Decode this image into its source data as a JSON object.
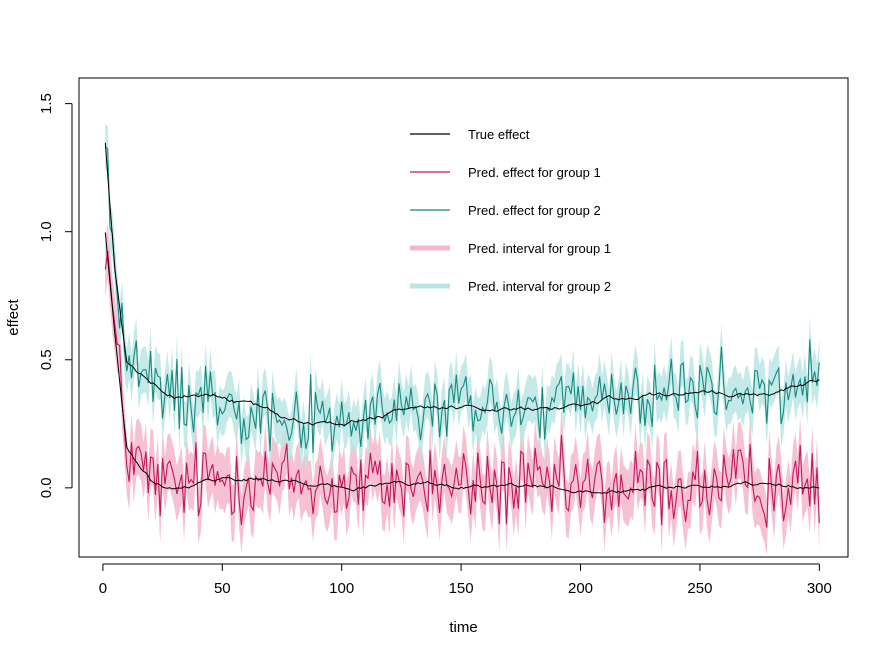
{
  "chart_data": {
    "type": "line",
    "title": "",
    "xlabel": "time",
    "ylabel": "effect",
    "xlim": [
      -10,
      312
    ],
    "ylim": [
      -0.27,
      1.6
    ],
    "x_ticks": [
      0,
      50,
      100,
      150,
      200,
      250,
      300
    ],
    "y_ticks": [
      0.0,
      0.5,
      1.0,
      1.5
    ],
    "x_tick_labels": [
      "0",
      "50",
      "100",
      "150",
      "200",
      "250",
      "300"
    ],
    "y_tick_labels": [
      "0.0",
      "0.5",
      "1.0",
      "1.5"
    ],
    "n_points": 300,
    "band_half_width": {
      "group1": 0.11,
      "group2": 0.09
    },
    "series": [
      {
        "name": "True effect",
        "role": "true_effect",
        "color": "#000000",
        "x": [
          1,
          5,
          10,
          20,
          30,
          50,
          75,
          100,
          125,
          150,
          175,
          200,
          225,
          250,
          275,
          300
        ],
        "y": [
          1.0,
          0.6,
          0.15,
          0.03,
          0.0,
          0.04,
          0.03,
          0.0,
          0.02,
          0.01,
          0.0,
          0.0,
          0.0,
          0.0,
          0.02,
          0.0
        ]
      },
      {
        "name": "True effect",
        "role": "true_effect",
        "color": "#000000",
        "x": [
          1,
          5,
          10,
          20,
          30,
          50,
          75,
          100,
          125,
          150,
          175,
          200,
          225,
          250,
          275,
          300
        ],
        "y": [
          1.35,
          0.85,
          0.5,
          0.4,
          0.36,
          0.36,
          0.28,
          0.25,
          0.3,
          0.32,
          0.31,
          0.33,
          0.36,
          0.38,
          0.36,
          0.42
        ]
      },
      {
        "name": "Pred. effect for group 1",
        "role": "pred_line",
        "color": "#C2185B",
        "x": [
          1,
          5,
          10,
          20,
          30,
          50,
          75,
          100,
          125,
          150,
          175,
          200,
          225,
          250,
          275,
          300
        ],
        "y": [
          1.0,
          0.6,
          0.15,
          0.03,
          0.0,
          0.04,
          0.03,
          0.0,
          0.02,
          0.01,
          0.0,
          0.0,
          0.0,
          0.0,
          0.02,
          0.0
        ],
        "noise_amplitude": 0.08
      },
      {
        "name": "Pred. effect for group 2",
        "role": "pred_line",
        "color": "#168A80",
        "x": [
          1,
          5,
          10,
          20,
          30,
          50,
          75,
          100,
          125,
          150,
          175,
          200,
          225,
          250,
          275,
          300
        ],
        "y": [
          1.35,
          0.85,
          0.5,
          0.4,
          0.36,
          0.36,
          0.28,
          0.25,
          0.3,
          0.32,
          0.31,
          0.33,
          0.36,
          0.38,
          0.36,
          0.42
        ],
        "noise_amplitude": 0.07
      },
      {
        "name": "Pred. interval for group 1",
        "role": "interval",
        "color": "#F4B6CA",
        "group": 1
      },
      {
        "name": "Pred. interval for group 2",
        "role": "interval",
        "color": "#B9E6E4",
        "group": 2
      }
    ],
    "legend": {
      "position": "top-right",
      "items": [
        {
          "label": "True effect",
          "color": "#000000",
          "style": "thin"
        },
        {
          "label": "Pred. effect for group 1",
          "color": "#C2185B",
          "style": "thin"
        },
        {
          "label": "Pred. effect for group 2",
          "color": "#168A80",
          "style": "thin"
        },
        {
          "label": "Pred. interval for group 1",
          "color": "#F4B6CA",
          "style": "thick"
        },
        {
          "label": "Pred. interval for group 2",
          "color": "#B9E6E4",
          "style": "thick"
        }
      ]
    }
  }
}
